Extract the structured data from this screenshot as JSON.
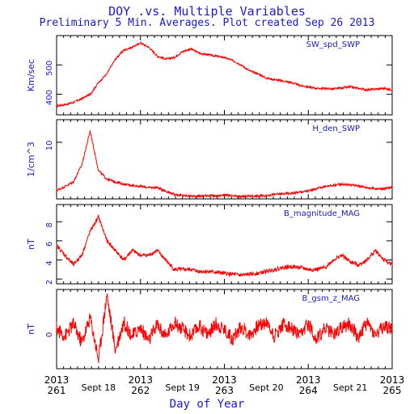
{
  "title": "DOY .vs. Multiple Variables",
  "subtitle": "Preliminary 5 Min. Averages. Plot created Sep 26 2013",
  "xlabel": "Day of Year",
  "colors": {
    "series": "#ff0000",
    "text": "#1a1acc",
    "axis": "#000000"
  },
  "chart_data": [
    {
      "type": "line",
      "series": [
        {
          "name": "SW_spd_SWP",
          "x": [
            261.0,
            261.1,
            261.2,
            261.3,
            261.4,
            261.5,
            261.6,
            261.7,
            261.8,
            261.9,
            262.0,
            262.1,
            262.2,
            262.3,
            262.4,
            262.5,
            262.6,
            262.7,
            262.8,
            262.9,
            263.0,
            263.1,
            263.2,
            263.3,
            263.4,
            263.5,
            263.6,
            263.7,
            263.8,
            263.9,
            264.0,
            264.1,
            264.2,
            264.3,
            264.4,
            264.5,
            264.6,
            264.7,
            264.8,
            264.9,
            265.0
          ],
          "values": [
            360,
            365,
            372,
            385,
            400,
            440,
            470,
            520,
            550,
            560,
            575,
            560,
            530,
            520,
            525,
            545,
            555,
            540,
            535,
            530,
            525,
            515,
            500,
            480,
            470,
            455,
            450,
            445,
            440,
            430,
            425,
            420,
            420,
            418,
            422,
            425,
            420,
            415,
            418,
            420,
            415
          ]
        }
      ],
      "ylabel": "Km/sec",
      "yticks": [
        400,
        500
      ],
      "ylim": [
        330,
        600
      ],
      "xlim": [
        261,
        265
      ]
    },
    {
      "type": "line",
      "series": [
        {
          "name": "H_den_SWP",
          "x": [
            261.0,
            261.1,
            261.2,
            261.3,
            261.4,
            261.5,
            261.6,
            261.7,
            261.8,
            261.9,
            262.0,
            262.1,
            262.2,
            262.3,
            262.4,
            262.5,
            262.6,
            262.7,
            262.8,
            262.9,
            263.0,
            263.1,
            263.2,
            263.3,
            263.4,
            263.5,
            263.6,
            263.7,
            263.8,
            263.9,
            264.0,
            264.1,
            264.2,
            264.3,
            264.4,
            264.5,
            264.6,
            264.7,
            264.8,
            264.9,
            265.0
          ],
          "values": [
            1.5,
            2.2,
            3.0,
            6.0,
            12.0,
            5.0,
            3.5,
            3.0,
            2.6,
            2.4,
            2.2,
            2.0,
            2.0,
            1.4,
            0.8,
            0.6,
            0.5,
            0.5,
            0.6,
            0.5,
            0.7,
            0.5,
            0.4,
            0.5,
            0.5,
            0.6,
            0.8,
            0.9,
            1.0,
            1.2,
            1.4,
            1.8,
            2.2,
            2.4,
            2.6,
            2.5,
            2.3,
            2.0,
            1.8,
            1.8,
            2.0
          ]
        }
      ],
      "ylabel": "1/cm^3",
      "yticks": [
        10
      ],
      "ylim": [
        0,
        14
      ],
      "xlim": [
        261,
        265
      ]
    },
    {
      "type": "line",
      "series": [
        {
          "name": "B_magnitude_MAG",
          "x": [
            261.0,
            261.1,
            261.2,
            261.3,
            261.4,
            261.5,
            261.6,
            261.7,
            261.8,
            261.9,
            262.0,
            262.1,
            262.2,
            262.3,
            262.4,
            262.5,
            262.6,
            262.7,
            262.8,
            262.9,
            263.0,
            263.1,
            263.2,
            263.3,
            263.4,
            263.5,
            263.6,
            263.7,
            263.8,
            263.9,
            264.0,
            264.1,
            264.2,
            264.3,
            264.4,
            264.5,
            264.6,
            264.7,
            264.8,
            264.9,
            265.0
          ],
          "values": [
            5.5,
            4.5,
            3.5,
            4.5,
            7.0,
            8.5,
            6.0,
            5.0,
            4.0,
            5.0,
            4.5,
            4.5,
            5.0,
            4.0,
            3.0,
            3.0,
            3.0,
            2.8,
            2.8,
            2.7,
            2.6,
            2.5,
            2.4,
            2.5,
            2.6,
            2.8,
            3.0,
            3.2,
            3.3,
            3.2,
            3.0,
            3.0,
            3.2,
            4.0,
            4.5,
            3.8,
            3.5,
            4.0,
            5.0,
            4.0,
            3.5
          ]
        }
      ],
      "ylabel": "nT",
      "yticks": [
        2,
        4,
        6,
        8
      ],
      "ylim": [
        1.5,
        9.8
      ],
      "xlim": [
        261,
        265
      ]
    },
    {
      "type": "line",
      "series": [
        {
          "name": "B_gsm_z_MAG",
          "x": [
            261.0,
            261.1,
            261.2,
            261.3,
            261.4,
            261.5,
            261.6,
            261.7,
            261.8,
            261.9,
            262.0,
            262.1,
            262.2,
            262.3,
            262.4,
            262.5,
            262.6,
            262.7,
            262.8,
            262.9,
            263.0,
            263.1,
            263.2,
            263.3,
            263.4,
            263.5,
            263.6,
            263.7,
            263.8,
            263.9,
            264.0,
            264.1,
            264.2,
            264.3,
            264.4,
            264.5,
            264.6,
            264.7,
            264.8,
            264.9,
            265.0
          ],
          "values": [
            0.3,
            -0.5,
            0.8,
            -1.2,
            1.5,
            -3.0,
            4.0,
            -2.0,
            1.0,
            -0.5,
            0.4,
            -1.0,
            0.8,
            -0.6,
            1.0,
            0.2,
            -0.5,
            0.6,
            -0.3,
            0.8,
            0.2,
            -0.8,
            0.5,
            -0.4,
            0.6,
            1.0,
            -0.5,
            0.8,
            0.3,
            -0.6,
            0.9,
            -0.9,
            0.4,
            -0.3,
            0.5,
            0.8,
            -0.7,
            1.0,
            -0.4,
            0.5,
            0.3
          ]
        }
      ],
      "ylabel": "nT",
      "yticks": [
        0
      ],
      "ylim": [
        -4,
        4.5
      ],
      "xlim": [
        261,
        265
      ]
    }
  ],
  "xaxis": {
    "ticks": [
      {
        "x": 261,
        "year": "2013",
        "doy": "261"
      },
      {
        "x": 262,
        "year": "2013",
        "doy": "262"
      },
      {
        "x": 263,
        "year": "2013",
        "doy": "263"
      },
      {
        "x": 264,
        "year": "2013",
        "doy": "264"
      },
      {
        "x": 265,
        "year": "2013",
        "doy": "265"
      }
    ],
    "date_labels": [
      {
        "x": 261.5,
        "label": "Sept 18"
      },
      {
        "x": 262.5,
        "label": "Sept 19"
      },
      {
        "x": 263.5,
        "label": "Sept 20"
      },
      {
        "x": 264.5,
        "label": "Sept 21"
      }
    ]
  }
}
